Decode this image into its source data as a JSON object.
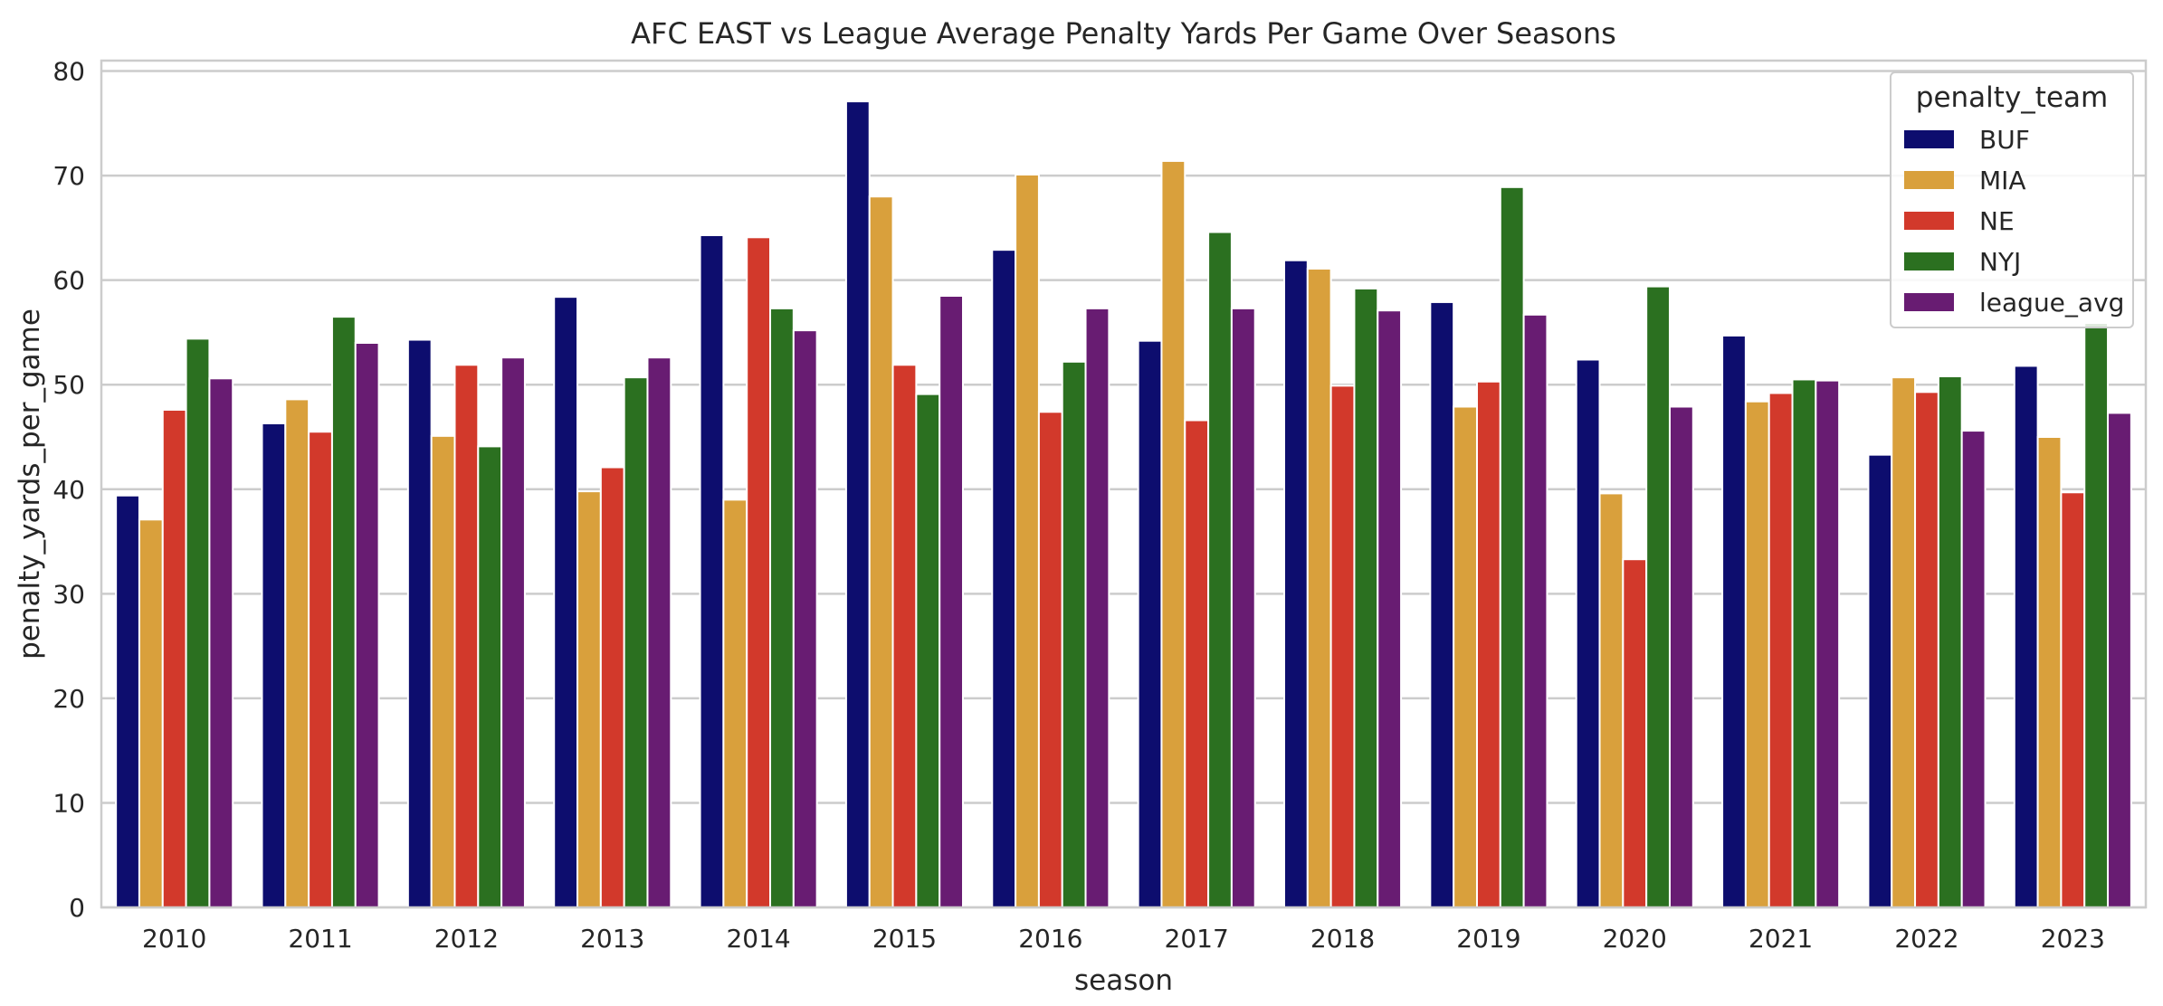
{
  "chart_data": {
    "type": "bar",
    "title": "AFC EAST vs League Average Penalty Yards Per Game Over Seasons",
    "xlabel": "season",
    "ylabel": "penalty_yards_per_game",
    "ylim": [
      0,
      81
    ],
    "yticks": [
      0,
      10,
      20,
      30,
      40,
      50,
      60,
      70,
      80
    ],
    "grid": true,
    "legend_title": "penalty_team",
    "legend_position": "top-right",
    "categories": [
      "2010",
      "2011",
      "2012",
      "2013",
      "2014",
      "2015",
      "2016",
      "2017",
      "2018",
      "2019",
      "2020",
      "2021",
      "2022",
      "2023"
    ],
    "series": [
      {
        "name": "BUF",
        "color": "#0d0d6e",
        "values": [
          39.4,
          46.3,
          54.3,
          58.4,
          64.3,
          77.1,
          62.9,
          54.2,
          61.9,
          57.9,
          52.4,
          54.7,
          43.3,
          51.8
        ]
      },
      {
        "name": "MIA",
        "color": "#d9a03c",
        "values": [
          37.1,
          48.6,
          45.1,
          39.8,
          39.0,
          68.0,
          70.1,
          71.4,
          61.1,
          47.9,
          39.6,
          48.4,
          50.7,
          45.0
        ]
      },
      {
        "name": "NE",
        "color": "#d2392b",
        "values": [
          47.6,
          45.5,
          51.9,
          42.1,
          64.1,
          51.9,
          47.4,
          46.6,
          49.9,
          50.3,
          33.3,
          49.2,
          49.3,
          39.7
        ]
      },
      {
        "name": "NYJ",
        "color": "#2b7020",
        "values": [
          54.4,
          56.5,
          44.1,
          50.7,
          57.3,
          49.1,
          52.2,
          64.6,
          59.2,
          68.9,
          59.4,
          50.5,
          50.8,
          55.9
        ]
      },
      {
        "name": "league_avg",
        "color": "#681c72",
        "values": [
          50.6,
          54.0,
          52.6,
          52.6,
          55.2,
          58.5,
          57.3,
          57.3,
          57.1,
          56.7,
          47.9,
          50.4,
          45.6,
          47.3
        ]
      }
    ]
  }
}
